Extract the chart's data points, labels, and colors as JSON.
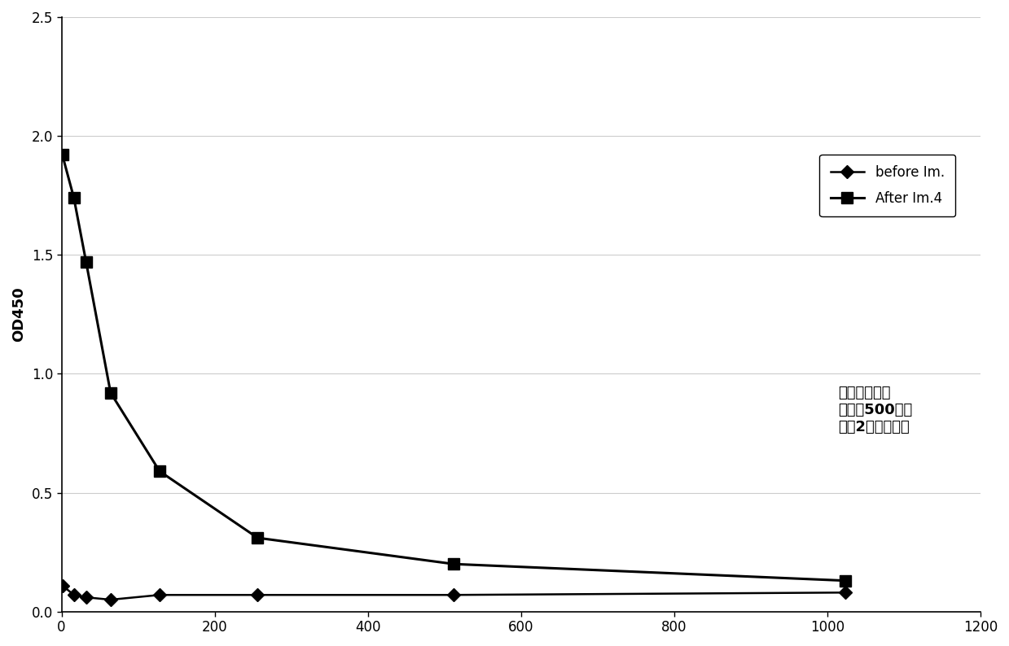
{
  "before_im_x": [
    1,
    16,
    32,
    64,
    128,
    256,
    512,
    1024
  ],
  "before_im_y": [
    0.11,
    0.07,
    0.06,
    0.05,
    0.07,
    0.07,
    0.07,
    0.08
  ],
  "after_im4_x": [
    1,
    16,
    32,
    64,
    128,
    256,
    512,
    1024
  ],
  "after_im4_y": [
    1.92,
    1.74,
    1.47,
    0.92,
    0.59,
    0.31,
    0.2,
    0.13
  ],
  "xlabel": "",
  "ylabel": "OD450",
  "xlim": [
    0,
    1200
  ],
  "ylim": [
    0,
    2.5
  ],
  "xticks": [
    0,
    200,
    400,
    600,
    800,
    1000,
    1200
  ],
  "yticks": [
    0,
    0.5,
    1.0,
    1.5,
    2.0,
    2.5
  ],
  "legend1": "before Im.",
  "legend2": "After Im.4",
  "annotation": "重链抗体检测\n先稀释500倍，\n然后2倍系列稀释",
  "line_color": "#000000",
  "bg_color": "#ffffff",
  "grid_color": "#cccccc"
}
